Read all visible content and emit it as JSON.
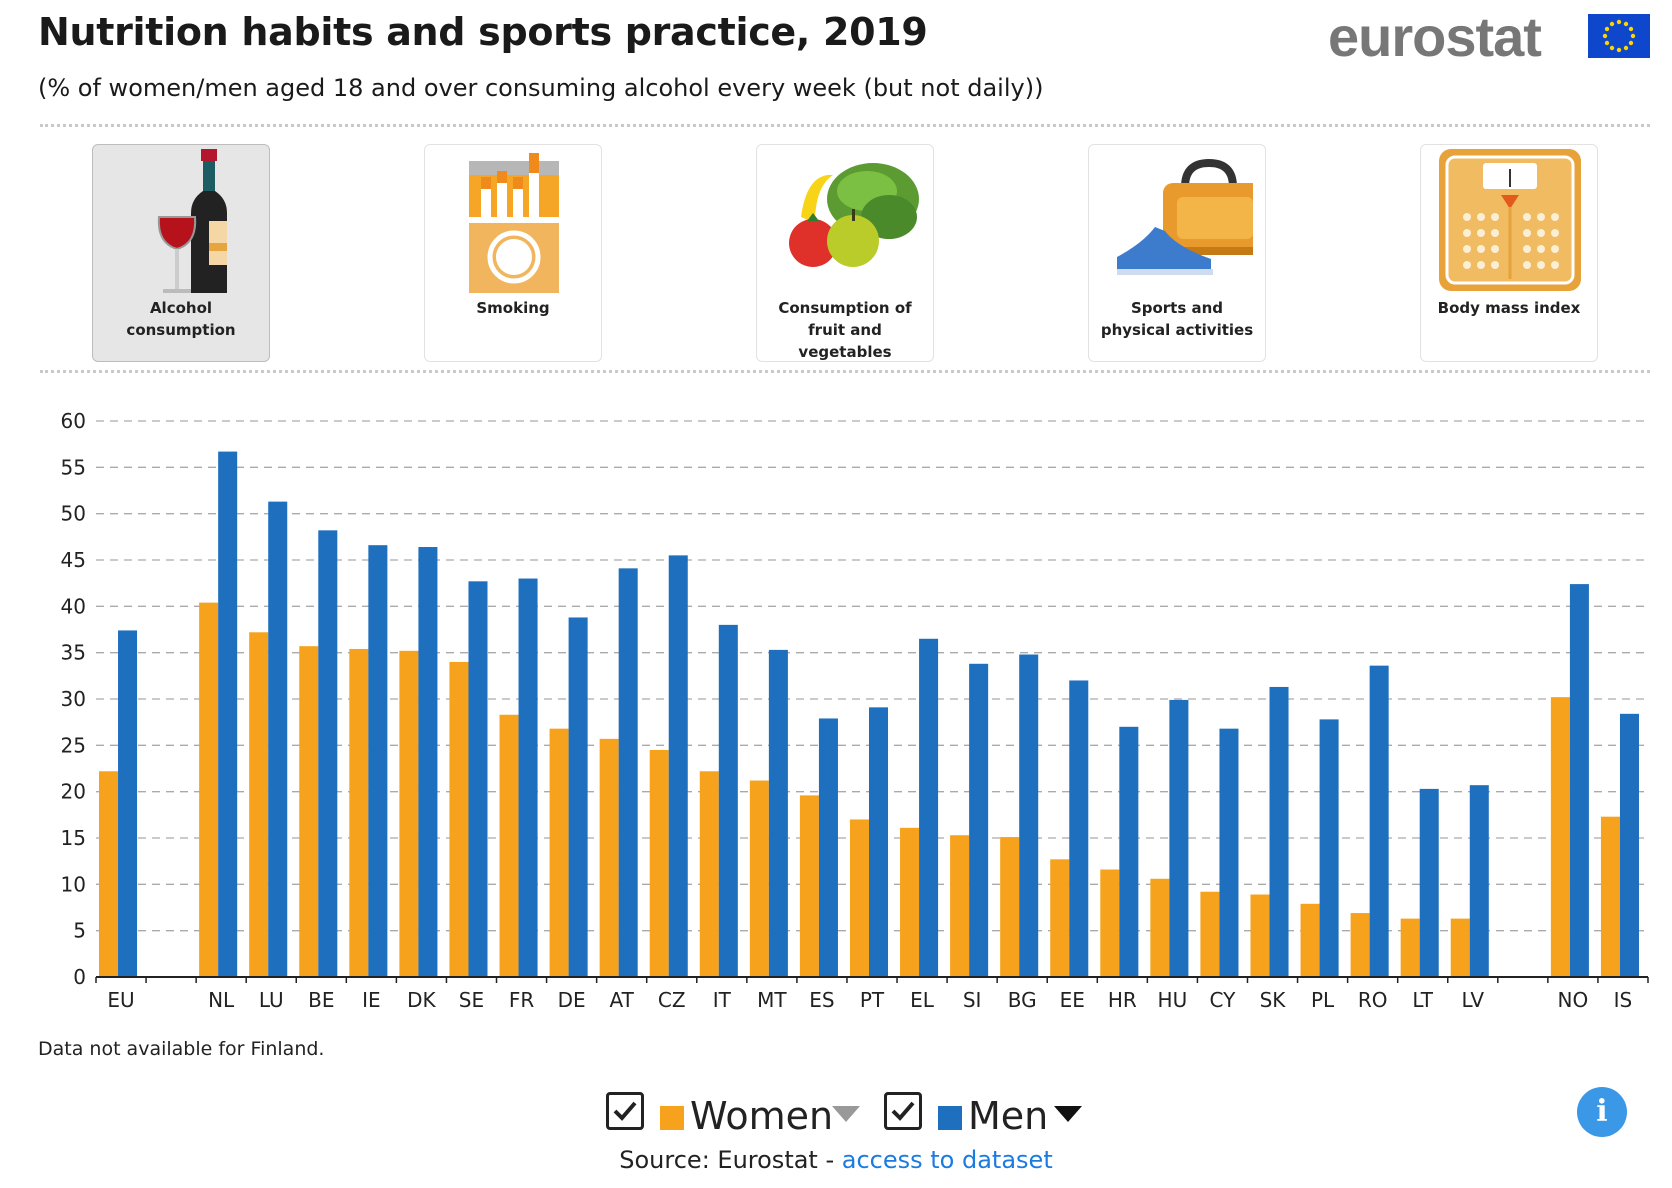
{
  "header": {
    "title": "Nutrition habits and sports practice, 2019",
    "subtitle": "(% of women/men aged 18 and over consuming alcohol every week (but not daily))",
    "logo_text": "eurostat"
  },
  "tiles": [
    {
      "label": "Alcohol\nconsumption",
      "icon": "wine-bottle-icon",
      "active": true
    },
    {
      "label": "Smoking",
      "icon": "cigarette-pack-icon",
      "active": false
    },
    {
      "label": "Consumption of\nfruit and\nvegetables",
      "icon": "fruit-vegetables-icon",
      "active": false
    },
    {
      "label": "Sports and\nphysical activities",
      "icon": "sports-bag-icon",
      "active": false
    },
    {
      "label": "Body mass index",
      "icon": "scale-icon",
      "active": false
    }
  ],
  "colors": {
    "women": "#f6a21c",
    "men": "#1f6fbf",
    "accent": "#1a7be0"
  },
  "chart_data": {
    "type": "bar",
    "categories": [
      "EU",
      "NL",
      "LU",
      "BE",
      "IE",
      "DK",
      "SE",
      "FR",
      "DE",
      "AT",
      "CZ",
      "IT",
      "MT",
      "ES",
      "PT",
      "EL",
      "SI",
      "BG",
      "EE",
      "HR",
      "HU",
      "CY",
      "SK",
      "PL",
      "RO",
      "LT",
      "LV",
      "NO",
      "IS"
    ],
    "series": [
      {
        "name": "Women",
        "values": [
          22.2,
          40.4,
          37.2,
          35.7,
          35.4,
          35.2,
          34.0,
          28.3,
          26.8,
          25.7,
          24.5,
          22.2,
          21.2,
          19.6,
          17.0,
          16.1,
          15.3,
          15.1,
          12.7,
          11.6,
          10.6,
          9.2,
          8.9,
          7.9,
          6.9,
          6.3,
          6.3,
          30.2,
          17.3
        ]
      },
      {
        "name": "Men",
        "values": [
          37.4,
          56.7,
          51.3,
          48.2,
          46.6,
          46.4,
          42.7,
          43.0,
          38.8,
          44.1,
          45.5,
          38.0,
          35.3,
          27.9,
          29.1,
          36.5,
          33.8,
          34.8,
          32.0,
          27.0,
          29.9,
          26.8,
          31.3,
          27.8,
          33.6,
          20.3,
          20.7,
          42.4,
          28.4
        ]
      }
    ],
    "ylim": [
      0,
      60
    ],
    "yticks": [
      0,
      5,
      10,
      15,
      20,
      25,
      30,
      35,
      40,
      45,
      50,
      55,
      60
    ],
    "grid": true,
    "legend_position": "bottom-center"
  },
  "footnote": "Data not available for Finland.",
  "legend": {
    "women_label": "Women",
    "men_label": "Men"
  },
  "source": {
    "prefix": "Source: Eurostat - ",
    "link_text": "access to dataset"
  },
  "info_label": "i"
}
